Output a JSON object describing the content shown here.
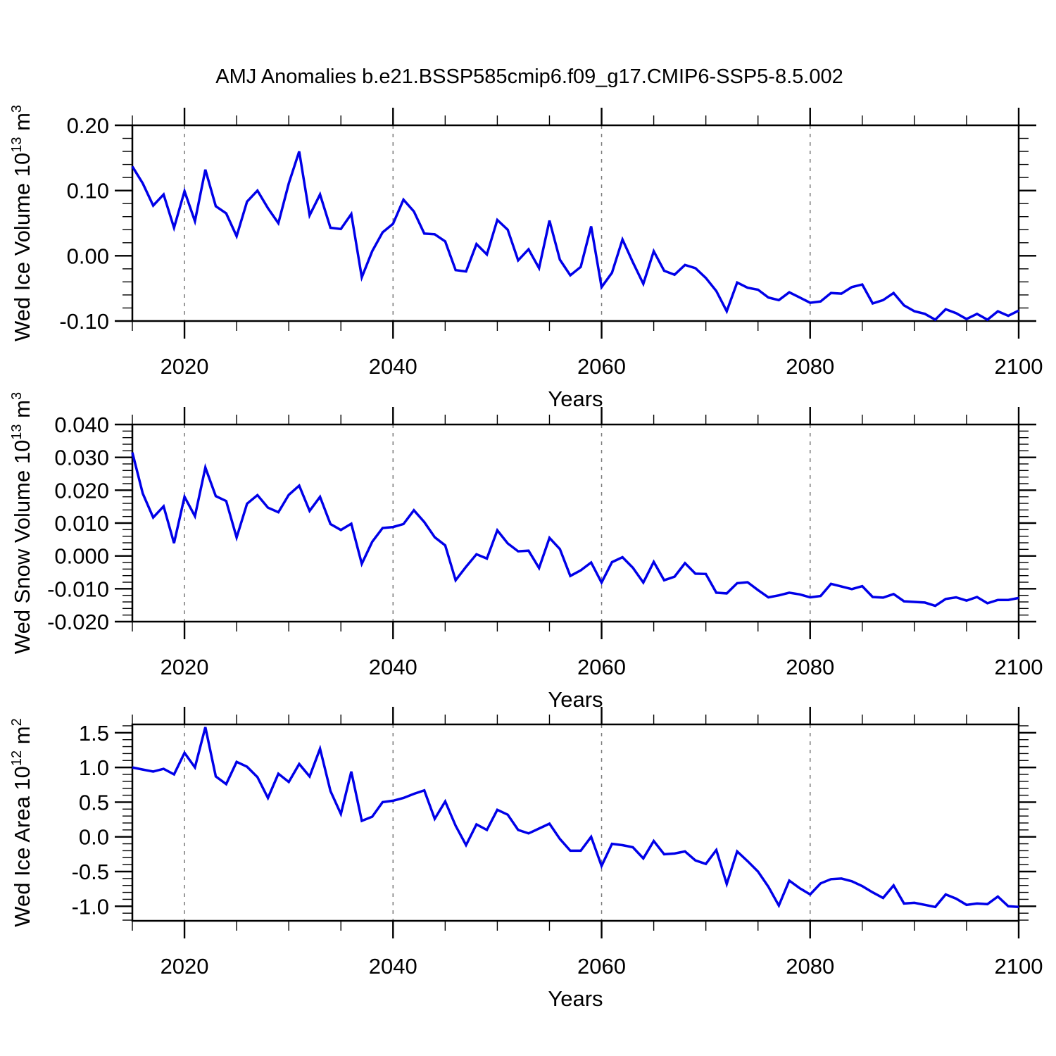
{
  "title": "AMJ Anomalies b.e21.BSSP585cmip6.f09_g17.CMIP6-SSP5-8.5.002",
  "line_color": "#0000e8",
  "gridline_color": "#7a7a7a",
  "frame_color": "#000000",
  "x_axis": {
    "label": "Years",
    "range": [
      2015,
      2100
    ],
    "major_ticks": [
      2020,
      2040,
      2060,
      2080,
      2100
    ],
    "tick_labels": [
      "2020",
      "2040",
      "2060",
      "2080",
      "2100"
    ],
    "minor_step": 5,
    "gridlines": [
      2020,
      2040,
      2060,
      2080
    ]
  },
  "years": [
    2015,
    2016,
    2017,
    2018,
    2019,
    2020,
    2021,
    2022,
    2023,
    2024,
    2025,
    2026,
    2027,
    2028,
    2029,
    2030,
    2031,
    2032,
    2033,
    2034,
    2035,
    2036,
    2037,
    2038,
    2039,
    2040,
    2041,
    2042,
    2043,
    2044,
    2045,
    2046,
    2047,
    2048,
    2049,
    2050,
    2051,
    2052,
    2053,
    2054,
    2055,
    2056,
    2057,
    2058,
    2059,
    2060,
    2061,
    2062,
    2063,
    2064,
    2065,
    2066,
    2067,
    2068,
    2069,
    2070,
    2071,
    2072,
    2073,
    2074,
    2075,
    2076,
    2077,
    2078,
    2079,
    2080,
    2081,
    2082,
    2083,
    2084,
    2085,
    2086,
    2087,
    2088,
    2089,
    2090,
    2091,
    2092,
    2093,
    2094,
    2095,
    2096,
    2097,
    2098,
    2099,
    2100
  ],
  "chart_data": [
    {
      "type": "line",
      "title": "",
      "xlabel": "Years",
      "ylabel": "Wed Ice Volume 10^13 m^3",
      "ylabel_parts": [
        {
          "t": "Wed Ice Volume 10",
          "sup": false
        },
        {
          "t": "13",
          "sup": true
        },
        {
          "t": " m",
          "sup": false
        },
        {
          "t": "3",
          "sup": true
        }
      ],
      "ylim": [
        -0.1,
        0.2
      ],
      "y_tick_values": [
        0.2,
        0.1,
        0.0,
        -0.1
      ],
      "y_tick_labels": [
        "0.20",
        "0.10",
        "0.00",
        "-0.10"
      ],
      "y_minor_step": 0.02,
      "grid": "dashed-vertical",
      "legend": "none",
      "values": [
        0.137,
        0.111,
        0.077,
        0.094,
        0.043,
        0.099,
        0.053,
        0.132,
        0.076,
        0.065,
        0.03,
        0.083,
        0.1,
        0.073,
        0.05,
        0.111,
        0.16,
        0.062,
        0.094,
        0.043,
        0.041,
        0.064,
        -0.033,
        0.007,
        0.036,
        0.049,
        0.086,
        0.068,
        0.034,
        0.033,
        0.022,
        -0.022,
        -0.024,
        0.018,
        0.002,
        0.055,
        0.04,
        -0.007,
        0.01,
        -0.019,
        0.054,
        -0.006,
        -0.03,
        -0.017,
        0.045,
        -0.048,
        -0.026,
        0.025,
        -0.01,
        -0.043,
        0.007,
        -0.023,
        -0.029,
        -0.014,
        -0.019,
        -0.034,
        -0.054,
        -0.085,
        -0.041,
        -0.049,
        -0.052,
        -0.064,
        -0.068,
        -0.056,
        -0.064,
        -0.072,
        -0.07,
        -0.057,
        -0.058,
        -0.048,
        -0.044,
        -0.073,
        -0.068,
        -0.057,
        -0.076,
        -0.085,
        -0.089,
        -0.098,
        -0.082,
        -0.088,
        -0.097,
        -0.089,
        -0.098,
        -0.085,
        -0.092,
        -0.084
      ]
    },
    {
      "type": "line",
      "title": "",
      "xlabel": "Years",
      "ylabel": "Wed Snow Volume 10^13 m^3",
      "ylabel_parts": [
        {
          "t": "Wed Snow Volume 10",
          "sup": false
        },
        {
          "t": "13",
          "sup": true
        },
        {
          "t": " m",
          "sup": false
        },
        {
          "t": "3",
          "sup": true
        }
      ],
      "ylim": [
        -0.02,
        0.04
      ],
      "y_tick_values": [
        0.04,
        0.03,
        0.02,
        0.01,
        0.0,
        -0.01,
        -0.02
      ],
      "y_tick_labels": [
        "0.040",
        "0.030",
        "0.020",
        "0.010",
        "0.000",
        "-0.010",
        "-0.020"
      ],
      "y_minor_step": 0.002,
      "grid": "dashed-vertical",
      "legend": "none",
      "values": [
        0.0315,
        0.019,
        0.0117,
        0.0151,
        0.0039,
        0.018,
        0.0121,
        0.0269,
        0.0182,
        0.0167,
        0.0056,
        0.0159,
        0.0185,
        0.0147,
        0.0133,
        0.0186,
        0.0214,
        0.0137,
        0.018,
        0.0097,
        0.0079,
        0.0098,
        -0.0024,
        0.0043,
        0.0085,
        0.0088,
        0.0097,
        0.0139,
        0.0103,
        0.0057,
        0.0032,
        -0.0074,
        -0.0033,
        0.0005,
        -0.0008,
        0.0078,
        0.0038,
        0.0014,
        0.0016,
        -0.0037,
        0.0055,
        0.0021,
        -0.0061,
        -0.0044,
        -0.002,
        -0.0081,
        -0.0019,
        -0.0004,
        -0.0036,
        -0.0081,
        -0.0018,
        -0.0074,
        -0.0063,
        -0.0022,
        -0.0054,
        -0.0055,
        -0.0112,
        -0.0114,
        -0.0083,
        -0.008,
        -0.0104,
        -0.0126,
        -0.012,
        -0.0112,
        -0.0117,
        -0.0126,
        -0.0122,
        -0.0085,
        -0.0093,
        -0.0101,
        -0.0092,
        -0.0125,
        -0.0127,
        -0.0116,
        -0.0138,
        -0.014,
        -0.0142,
        -0.0152,
        -0.0131,
        -0.0126,
        -0.0136,
        -0.0125,
        -0.0144,
        -0.0134,
        -0.0134,
        -0.0128
      ]
    },
    {
      "type": "line",
      "title": "",
      "xlabel": "Years",
      "ylabel": "Wed Ice Area 10^12 m^2",
      "ylabel_parts": [
        {
          "t": "Wed Ice Area 10",
          "sup": false
        },
        {
          "t": "12",
          "sup": true
        },
        {
          "t": " m",
          "sup": false
        },
        {
          "t": "2",
          "sup": true
        }
      ],
      "ylim": [
        -1.21,
        1.62
      ],
      "y_tick_values": [
        1.5,
        1.0,
        0.5,
        0.0,
        -0.5,
        -1.0
      ],
      "y_tick_labels": [
        "1.5",
        "1.0",
        "0.5",
        "0.0",
        "-0.5",
        "-1.0"
      ],
      "y_minor_step": 0.1,
      "grid": "dashed-vertical",
      "legend": "none",
      "values": [
        1.0,
        0.97,
        0.94,
        0.98,
        0.9,
        1.21,
        1.0,
        1.58,
        0.87,
        0.76,
        1.08,
        1.01,
        0.86,
        0.56,
        0.91,
        0.79,
        1.05,
        0.87,
        1.27,
        0.66,
        0.33,
        0.94,
        0.23,
        0.29,
        0.5,
        0.52,
        0.56,
        0.62,
        0.67,
        0.26,
        0.51,
        0.16,
        -0.12,
        0.18,
        0.1,
        0.39,
        0.32,
        0.1,
        0.05,
        0.12,
        0.19,
        -0.03,
        -0.2,
        -0.2,
        0.0,
        -0.42,
        -0.1,
        -0.12,
        -0.15,
        -0.31,
        -0.06,
        -0.25,
        -0.24,
        -0.21,
        -0.34,
        -0.39,
        -0.19,
        -0.68,
        -0.21,
        -0.35,
        -0.5,
        -0.72,
        -0.99,
        -0.63,
        -0.74,
        -0.83,
        -0.67,
        -0.61,
        -0.6,
        -0.64,
        -0.71,
        -0.8,
        -0.88,
        -0.7,
        -0.96,
        -0.95,
        -0.98,
        -1.01,
        -0.83,
        -0.89,
        -0.98,
        -0.96,
        -0.97,
        -0.86,
        -1.0,
        -1.01
      ]
    }
  ]
}
